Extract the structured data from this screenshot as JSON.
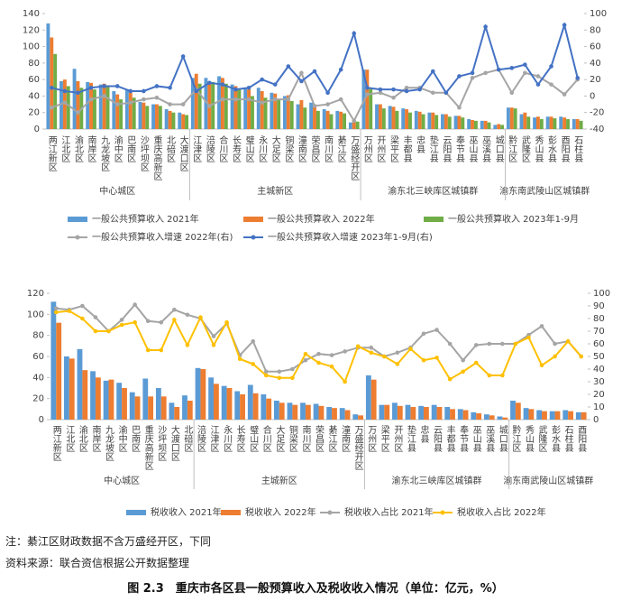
{
  "chart_data": [
    {
      "type": "bar_line",
      "groups": [
        {
          "label": "中心城区",
          "categories": [
            "两江新区",
            "江北区",
            "渝北区",
            "南岸区",
            "九龙坡区",
            "渝中区",
            "巴南区",
            "沙坪坝区",
            "重庆高新区",
            "北碚区",
            "大渡口区"
          ]
        },
        {
          "label": "主城新区",
          "categories": [
            "江津区",
            "涪陵区",
            "合川区",
            "长寿区",
            "璧山区",
            "永川区",
            "大足区",
            "铜梁区",
            "潼南区",
            "荣昌区",
            "南川区",
            "綦江区",
            "万盛经开区"
          ]
        },
        {
          "label": "渝东北三峡库区城镇群",
          "categories": [
            "万州区",
            "开州区",
            "梁平区",
            "丰都县",
            "忠县",
            "垫江县",
            "云阳县",
            "奉节县",
            "巫山县",
            "巫溪县",
            "城口县"
          ]
        },
        {
          "label": "渝东南武陵山区城镇群",
          "categories": [
            "黔江区",
            "武隆区",
            "秀山县",
            "彭水县",
            "酉阳县",
            "石柱县"
          ]
        }
      ],
      "ylim": [
        0,
        140
      ],
      "yticks": [
        0,
        20,
        40,
        60,
        80,
        100,
        120,
        140
      ],
      "y2lim": [
        -40,
        100
      ],
      "y2ticks": [
        -40,
        -20,
        0,
        20,
        40,
        60,
        80,
        100
      ],
      "grid": false,
      "series": [
        {
          "name": "一般公共预算收入 2021年",
          "kind": "bar",
          "color": "#5b9bd5",
          "values": [
            128,
            58,
            73,
            57,
            54,
            46,
            48,
            33,
            30,
            24,
            20,
            62,
            62,
            64,
            54,
            50,
            50,
            44,
            40,
            30,
            32,
            24,
            22,
            8,
            72,
            30,
            28,
            25,
            22,
            20,
            18,
            16,
            12,
            10,
            5,
            26,
            18,
            14,
            15,
            15,
            12
          ]
        },
        {
          "name": "一般公共预算收入 2022年",
          "kind": "bar",
          "color": "#ed7d31",
          "values": [
            111,
            60,
            58,
            56,
            55,
            42,
            44,
            32,
            30,
            22,
            18,
            67,
            55,
            62,
            52,
            48,
            46,
            43,
            41,
            35,
            28,
            22,
            21,
            10,
            72,
            30,
            27,
            24,
            21,
            20,
            18,
            16,
            11,
            10,
            6,
            26,
            20,
            15,
            15,
            14,
            12
          ]
        },
        {
          "name": "一般公共预算收入 2023年1-9月",
          "kind": "bar",
          "color": "#70ad47",
          "values": [
            91,
            52,
            50,
            48,
            52,
            36,
            38,
            28,
            28,
            20,
            17,
            55,
            57,
            55,
            48,
            40,
            38,
            36,
            34,
            26,
            22,
            18,
            19,
            9,
            49,
            25,
            22,
            20,
            18,
            17,
            15,
            14,
            10,
            8,
            5,
            25,
            15,
            12,
            13,
            12,
            10
          ]
        },
        {
          "name": "一般公共预算收入增速 2022年(右)",
          "kind": "line",
          "axis": "y2",
          "color": "#a5a5a5",
          "values": [
            -14,
            -8,
            -20,
            -4,
            0,
            -10,
            -8,
            -4,
            -2,
            -10,
            -10,
            8,
            -12,
            -4,
            -4,
            -4,
            -8,
            -4,
            -4,
            28,
            -12,
            -10,
            -4,
            -30,
            2,
            4,
            -2,
            10,
            10,
            4,
            4,
            -14,
            22,
            28,
            32,
            4,
            28,
            24,
            14,
            2,
            20
          ]
        },
        {
          "name": "一般公共预算收入增速 2023年1-9月(右)",
          "kind": "line",
          "axis": "y2",
          "color": "#4472c4",
          "values": [
            10,
            6,
            4,
            10,
            12,
            12,
            6,
            6,
            12,
            10,
            48,
            6,
            16,
            14,
            8,
            10,
            20,
            14,
            36,
            18,
            30,
            4,
            32,
            76,
            10,
            8,
            8,
            6,
            8,
            30,
            4,
            24,
            28,
            84,
            32,
            34,
            38,
            14,
            36,
            86,
            22
          ]
        }
      ]
    },
    {
      "type": "bar_line",
      "groups": [
        {
          "label": "中心城区",
          "categories": [
            "两江新区",
            "江北区",
            "渝北区",
            "南岸区",
            "九龙坡区",
            "渝中区",
            "巴南区",
            "重庆高新区",
            "沙坪坝区",
            "大渡口区",
            "北碚区"
          ]
        },
        {
          "label": "主城新区",
          "categories": [
            "涪陵区",
            "江津区",
            "永川区",
            "长寿区",
            "璧山区",
            "合川区",
            "大足区",
            "铜梁区",
            "南川区",
            "荣昌区",
            "綦江区",
            "潼南区",
            "万盛经开区"
          ]
        },
        {
          "label": "渝东北三峡库区城镇群",
          "categories": [
            "万州区",
            "梁平区",
            "开州区",
            "垫江县",
            "忠县",
            "云阳县",
            "丰都县",
            "奉节县",
            "巫山县",
            "巫溪县",
            "城口县"
          ]
        },
        {
          "label": "渝东南武陵山区城镇群",
          "categories": [
            "黔江区",
            "秀山县",
            "武隆区",
            "彭水县",
            "石柱县",
            "酉阳县"
          ]
        }
      ],
      "ylim": [
        0,
        120
      ],
      "yticks": [
        0,
        20,
        40,
        60,
        80,
        100,
        120
      ],
      "y2lim": [
        0,
        100
      ],
      "y2ticks": [
        0,
        10,
        20,
        30,
        40,
        50,
        60,
        70,
        80,
        90,
        100
      ],
      "grid": false,
      "series": [
        {
          "name": "税收收入 2021年",
          "kind": "bar",
          "color": "#5b9bd5",
          "values": [
            112,
            60,
            67,
            46,
            37,
            35,
            26,
            39,
            30,
            16,
            23,
            49,
            40,
            32,
            27,
            33,
            24,
            18,
            16,
            16,
            15,
            12,
            11,
            5,
            42,
            14,
            16,
            14,
            13,
            14,
            12,
            10,
            7,
            5,
            3,
            18,
            11,
            9,
            8,
            9,
            7
          ]
        },
        {
          "name": "税收收入 2022年",
          "kind": "bar",
          "color": "#ed7d31",
          "values": [
            92,
            58,
            47,
            40,
            38,
            30,
            22,
            22,
            22,
            12,
            18,
            48,
            34,
            30,
            24,
            25,
            20,
            16,
            14,
            14,
            13,
            11,
            9,
            4,
            38,
            14,
            13,
            12,
            12,
            12,
            10,
            9,
            6,
            4,
            2,
            16,
            10,
            8,
            8,
            8,
            7
          ]
        },
        {
          "name": "税收收入占比 2021年",
          "kind": "line",
          "axis": "y2",
          "color": "#a5a5a5",
          "values": [
            88,
            87,
            90,
            81,
            70,
            79,
            91,
            78,
            77,
            87,
            83,
            80,
            66,
            76,
            51,
            62,
            38,
            38,
            40,
            47,
            52,
            51,
            54,
            57,
            57,
            50,
            53,
            57,
            68,
            71,
            60,
            47,
            59,
            60,
            60,
            60,
            67,
            74,
            60,
            62,
            50
          ]
        },
        {
          "name": "税收收入占比 2022年",
          "kind": "line",
          "axis": "y2",
          "color": "#ffc000",
          "values": [
            85,
            86,
            80,
            70,
            70,
            75,
            77,
            55,
            55,
            79,
            59,
            81,
            59,
            77,
            48,
            44,
            35,
            33,
            33,
            52,
            45,
            42,
            30,
            58,
            53,
            50,
            44,
            56,
            47,
            49,
            32,
            38,
            45,
            35,
            35,
            60,
            65,
            43,
            50,
            62,
            50
          ]
        }
      ]
    }
  ],
  "notes": [
    "注：綦江区财政数据不含万盛经开区，下同",
    "资料来源：联合资信根据公开数据整理"
  ],
  "caption": "图 2.3　重庆市各区县一般预算收入及税收收入情况（单位：亿元，%）"
}
